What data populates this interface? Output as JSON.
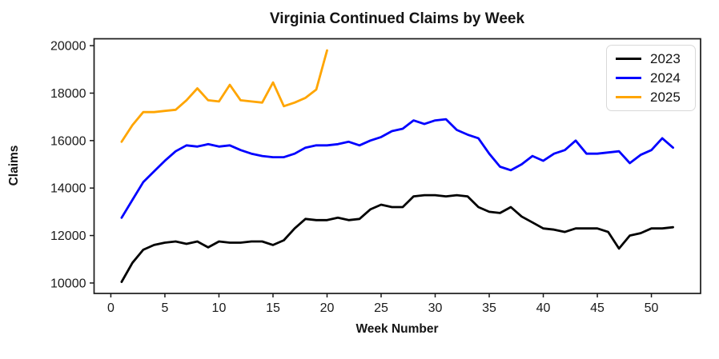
{
  "chart_data": {
    "type": "line",
    "title": "Virginia Continued Claims by Week",
    "xlabel": "Week Number",
    "ylabel": "Claims",
    "xlim": [
      -1.55,
      54.55
    ],
    "ylim": [
      9560,
      20290
    ],
    "x_ticks": [
      0,
      5,
      10,
      15,
      20,
      25,
      30,
      35,
      40,
      45,
      50
    ],
    "y_ticks": [
      10000,
      12000,
      14000,
      16000,
      18000,
      20000
    ],
    "grid": false,
    "legend_position": "upper right",
    "frame_color": "#1a1a1a",
    "tick_label_color": "#1a1a1a",
    "series": [
      {
        "name": "2023",
        "color": "#000000",
        "x": [
          1,
          2,
          3,
          4,
          5,
          6,
          7,
          8,
          9,
          10,
          11,
          12,
          13,
          14,
          15,
          16,
          17,
          18,
          19,
          20,
          21,
          22,
          23,
          24,
          25,
          26,
          27,
          28,
          29,
          30,
          31,
          32,
          33,
          34,
          35,
          36,
          37,
          38,
          39,
          40,
          41,
          42,
          43,
          44,
          45,
          46,
          47,
          48,
          49,
          50,
          51,
          52
        ],
        "values": [
          10050,
          10850,
          11400,
          11600,
          11700,
          11750,
          11650,
          11750,
          11500,
          11750,
          11700,
          11700,
          11750,
          11750,
          11600,
          11800,
          12300,
          12700,
          12650,
          12650,
          12750,
          12650,
          12700,
          13100,
          13300,
          13200,
          13200,
          13650,
          13700,
          13700,
          13650,
          13700,
          13650,
          13200,
          13000,
          12950,
          13200,
          12800,
          12550,
          12300,
          12250,
          12150,
          12300,
          12300,
          12300,
          12150,
          11450,
          12000,
          12100,
          12300,
          12300,
          12350
        ]
      },
      {
        "name": "2024",
        "color": "#0000ff",
        "x": [
          1,
          2,
          3,
          4,
          5,
          6,
          7,
          8,
          9,
          10,
          11,
          12,
          13,
          14,
          15,
          16,
          17,
          18,
          19,
          20,
          21,
          22,
          23,
          24,
          25,
          26,
          27,
          28,
          29,
          30,
          31,
          32,
          33,
          34,
          35,
          36,
          37,
          38,
          39,
          40,
          41,
          42,
          43,
          44,
          45,
          46,
          47,
          48,
          49,
          50,
          51,
          52
        ],
        "values": [
          12750,
          13500,
          14250,
          14700,
          15150,
          15550,
          15800,
          15750,
          15850,
          15750,
          15800,
          15600,
          15450,
          15350,
          15300,
          15300,
          15450,
          15700,
          15800,
          15800,
          15850,
          15950,
          15800,
          16000,
          16150,
          16400,
          16500,
          16850,
          16700,
          16850,
          16900,
          16450,
          16250,
          16100,
          15450,
          14900,
          14750,
          15000,
          15350,
          15150,
          15450,
          15600,
          16000,
          15450,
          15450,
          15500,
          15550,
          15050,
          15400,
          15600,
          16100,
          15700
        ]
      },
      {
        "name": "2025",
        "color": "#ffa500",
        "x": [
          1,
          2,
          3,
          4,
          5,
          6,
          7,
          8,
          9,
          10,
          11,
          12,
          13,
          14,
          15,
          16,
          17,
          18,
          19,
          20
        ],
        "values": [
          15950,
          16650,
          17200,
          17200,
          17250,
          17300,
          17700,
          18200,
          17700,
          17650,
          18350,
          17700,
          17650,
          17600,
          18450,
          17450,
          17600,
          17800,
          18150,
          19800
        ]
      }
    ]
  }
}
